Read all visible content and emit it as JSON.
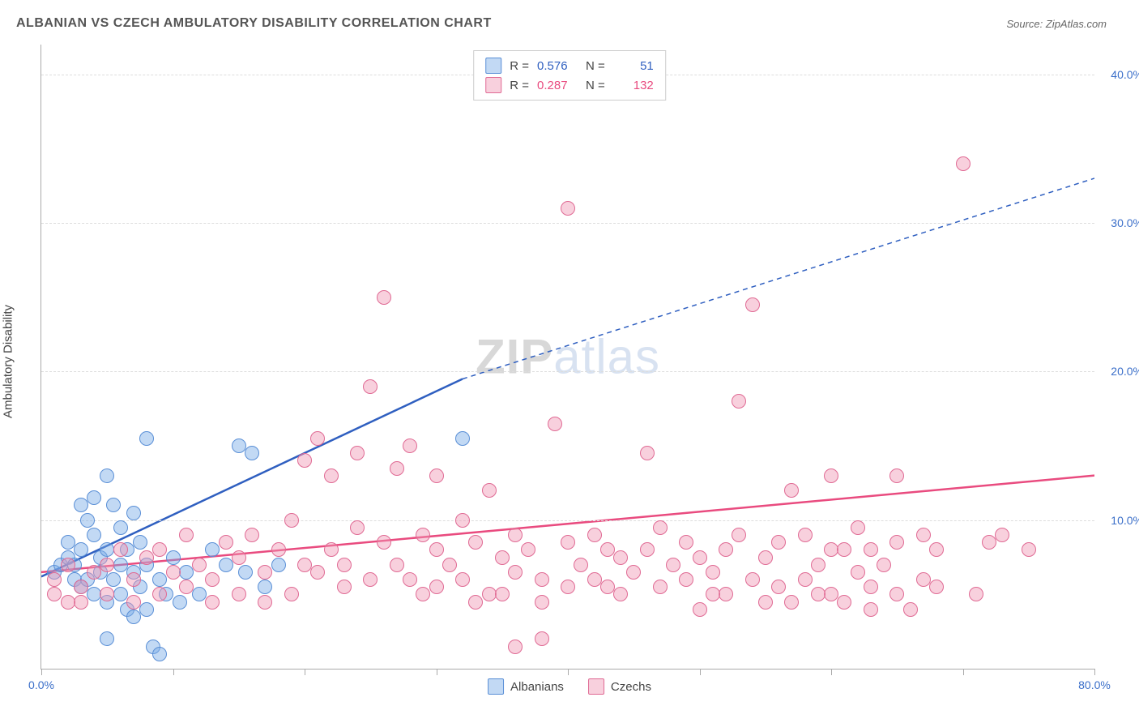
{
  "title": "ALBANIAN VS CZECH AMBULATORY DISABILITY CORRELATION CHART",
  "source": "Source: ZipAtlas.com",
  "ylabel": "Ambulatory Disability",
  "watermark_zip": "ZIP",
  "watermark_atlas": "atlas",
  "chart": {
    "type": "scatter",
    "xlim": [
      0,
      80
    ],
    "ylim": [
      0,
      42
    ],
    "xtick_positions": [
      0,
      10,
      20,
      30,
      40,
      50,
      60,
      70,
      80
    ],
    "xtick_labels_shown": {
      "0": "0.0%",
      "80": "80.0%"
    },
    "ytick_positions": [
      10,
      20,
      30,
      40
    ],
    "ytick_labels": {
      "10": "10.0%",
      "20": "20.0%",
      "30": "30.0%",
      "40": "40.0%"
    },
    "grid_color": "#dddddd",
    "axis_color": "#aaaaaa",
    "background_color": "#ffffff",
    "series": [
      {
        "name": "Albanians",
        "color_fill": "rgba(120,170,230,0.45)",
        "color_stroke": "#5a8fd6",
        "R": "0.576",
        "N": "51",
        "trend": {
          "x1": 0,
          "y1": 6.2,
          "x2": 32,
          "y2": 19.5,
          "x2_dash": 80,
          "y2_dash": 33,
          "color": "#2f5fc0",
          "width_solid": 2.5,
          "width_dash": 1.5
        },
        "points": [
          [
            1,
            6.5
          ],
          [
            1.5,
            7
          ],
          [
            2,
            7.5
          ],
          [
            2,
            8.5
          ],
          [
            2.5,
            6
          ],
          [
            2.5,
            7
          ],
          [
            3,
            5.5
          ],
          [
            3,
            8
          ],
          [
            3,
            11
          ],
          [
            3.5,
            6
          ],
          [
            3.5,
            10
          ],
          [
            4,
            5
          ],
          [
            4,
            9
          ],
          [
            4,
            11.5
          ],
          [
            4.5,
            6.5
          ],
          [
            4.5,
            7.5
          ],
          [
            5,
            4.5
          ],
          [
            5,
            8
          ],
          [
            5,
            13
          ],
          [
            5.5,
            6
          ],
          [
            5.5,
            11
          ],
          [
            6,
            5
          ],
          [
            6,
            7
          ],
          [
            6,
            9.5
          ],
          [
            6.5,
            4
          ],
          [
            6.5,
            8
          ],
          [
            7,
            3.5
          ],
          [
            7,
            6.5
          ],
          [
            7,
            10.5
          ],
          [
            7.5,
            5.5
          ],
          [
            7.5,
            8.5
          ],
          [
            8,
            4
          ],
          [
            8,
            7
          ],
          [
            8,
            15.5
          ],
          [
            8.5,
            1.5
          ],
          [
            9,
            1
          ],
          [
            9,
            6
          ],
          [
            9.5,
            5
          ],
          [
            10,
            7.5
          ],
          [
            10.5,
            4.5
          ],
          [
            11,
            6.5
          ],
          [
            12,
            5
          ],
          [
            13,
            8
          ],
          [
            14,
            7
          ],
          [
            15,
            15
          ],
          [
            15.5,
            6.5
          ],
          [
            16,
            14.5
          ],
          [
            17,
            5.5
          ],
          [
            18,
            7
          ],
          [
            32,
            15.5
          ],
          [
            5,
            2
          ]
        ]
      },
      {
        "name": "Czechs",
        "color_fill": "rgba(240,150,180,0.45)",
        "color_stroke": "#e06a94",
        "R": "0.287",
        "N": "132",
        "trend": {
          "x1": 0,
          "y1": 6.5,
          "x2": 80,
          "y2": 13,
          "color": "#e94b7f",
          "width_solid": 2.5
        },
        "points": [
          [
            1,
            6
          ],
          [
            2,
            7
          ],
          [
            3,
            5.5
          ],
          [
            4,
            6.5
          ],
          [
            5,
            7
          ],
          [
            6,
            8
          ],
          [
            7,
            6
          ],
          [
            8,
            7.5
          ],
          [
            9,
            8
          ],
          [
            10,
            6.5
          ],
          [
            11,
            9
          ],
          [
            12,
            7
          ],
          [
            13,
            6
          ],
          [
            14,
            8.5
          ],
          [
            15,
            7.5
          ],
          [
            16,
            9
          ],
          [
            17,
            6.5
          ],
          [
            18,
            8
          ],
          [
            19,
            10
          ],
          [
            20,
            7
          ],
          [
            20,
            14
          ],
          [
            21,
            6.5
          ],
          [
            21,
            15.5
          ],
          [
            22,
            8
          ],
          [
            22,
            13
          ],
          [
            23,
            7
          ],
          [
            24,
            9.5
          ],
          [
            24,
            14.5
          ],
          [
            25,
            6
          ],
          [
            25,
            19
          ],
          [
            26,
            8.5
          ],
          [
            26,
            25
          ],
          [
            27,
            7
          ],
          [
            27,
            13.5
          ],
          [
            28,
            6
          ],
          [
            28,
            15
          ],
          [
            29,
            9
          ],
          [
            30,
            5.5
          ],
          [
            30,
            8
          ],
          [
            30,
            13
          ],
          [
            31,
            7
          ],
          [
            32,
            6
          ],
          [
            32,
            10
          ],
          [
            33,
            8.5
          ],
          [
            34,
            5
          ],
          [
            34,
            12
          ],
          [
            35,
            7.5
          ],
          [
            36,
            6.5
          ],
          [
            36,
            9
          ],
          [
            37,
            8
          ],
          [
            38,
            4.5
          ],
          [
            38,
            6
          ],
          [
            39,
            16.5
          ],
          [
            40,
            5.5
          ],
          [
            40,
            8.5
          ],
          [
            40,
            31
          ],
          [
            41,
            7
          ],
          [
            42,
            6
          ],
          [
            42,
            9
          ],
          [
            43,
            8
          ],
          [
            44,
            5
          ],
          [
            44,
            7.5
          ],
          [
            45,
            6.5
          ],
          [
            46,
            8
          ],
          [
            46,
            14.5
          ],
          [
            47,
            5.5
          ],
          [
            47,
            9.5
          ],
          [
            48,
            7
          ],
          [
            49,
            6
          ],
          [
            49,
            8.5
          ],
          [
            50,
            4
          ],
          [
            50,
            7.5
          ],
          [
            51,
            6.5
          ],
          [
            52,
            5
          ],
          [
            52,
            8
          ],
          [
            53,
            9
          ],
          [
            53,
            18
          ],
          [
            54,
            6
          ],
          [
            54,
            24.5
          ],
          [
            55,
            7.5
          ],
          [
            56,
            5.5
          ],
          [
            56,
            8.5
          ],
          [
            57,
            4.5
          ],
          [
            57,
            12
          ],
          [
            58,
            6
          ],
          [
            58,
            9
          ],
          [
            59,
            7
          ],
          [
            60,
            5
          ],
          [
            60,
            8
          ],
          [
            60,
            13
          ],
          [
            61,
            4.5
          ],
          [
            62,
            6.5
          ],
          [
            62,
            9.5
          ],
          [
            63,
            5.5
          ],
          [
            63,
            8
          ],
          [
            64,
            7
          ],
          [
            65,
            5
          ],
          [
            65,
            8.5
          ],
          [
            65,
            13
          ],
          [
            66,
            4
          ],
          [
            67,
            6
          ],
          [
            67,
            9
          ],
          [
            68,
            5.5
          ],
          [
            68,
            8
          ],
          [
            70,
            34
          ],
          [
            71,
            5
          ],
          [
            72,
            8.5
          ],
          [
            73,
            9
          ],
          [
            75,
            8
          ],
          [
            36,
            1.5
          ],
          [
            38,
            2
          ],
          [
            15,
            5
          ],
          [
            17,
            4.5
          ],
          [
            19,
            5
          ],
          [
            23,
            5.5
          ],
          [
            29,
            5
          ],
          [
            33,
            4.5
          ],
          [
            35,
            5
          ],
          [
            43,
            5.5
          ],
          [
            51,
            5
          ],
          [
            55,
            4.5
          ],
          [
            59,
            5
          ],
          [
            61,
            8
          ],
          [
            63,
            4
          ],
          [
            11,
            5.5
          ],
          [
            13,
            4.5
          ],
          [
            9,
            5
          ],
          [
            7,
            4.5
          ],
          [
            5,
            5
          ],
          [
            3,
            4.5
          ],
          [
            1,
            5
          ],
          [
            2,
            4.5
          ]
        ]
      }
    ]
  },
  "legend_bottom": [
    {
      "label": "Albanians",
      "fill": "rgba(120,170,230,0.45)",
      "stroke": "#5a8fd6"
    },
    {
      "label": "Czechs",
      "fill": "rgba(240,150,180,0.45)",
      "stroke": "#e06a94"
    }
  ],
  "legend_top_value_color_a": "#2f5fc0",
  "legend_top_value_color_b": "#e94b7f"
}
